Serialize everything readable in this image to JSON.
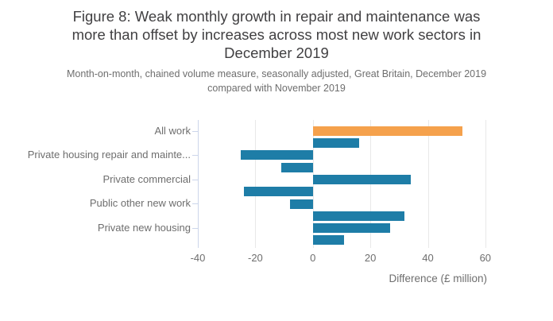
{
  "header": {
    "title_lines": [
      "Figure 8: Weak monthly growth in repair and maintenance was",
      "more than offset by increases across most new work sectors in",
      "December 2019"
    ],
    "subtitle_lines": [
      "Month-on-month, chained volume measure, seasonally adjusted, Great Britain, December 2019",
      "compared with November 2019"
    ]
  },
  "chart_data": {
    "type": "bar",
    "orientation": "horizontal",
    "title": "Figure 8: Weak monthly growth in repair and maintenance was more than offset by increases across most new work sectors in December 2019",
    "subtitle": "Month-on-month, chained volume measure, seasonally adjusted, Great Britain, December 2019 compared with November 2019",
    "xlabel": "Difference (£ million)",
    "categories": [
      "All work",
      "",
      "Private housing repair and mainte...",
      "",
      "Private commercial",
      "",
      "Public other new work",
      "",
      "Private new housing",
      ""
    ],
    "values": [
      52,
      16,
      -25,
      -11,
      34,
      -24,
      -8,
      32,
      27,
      11
    ],
    "highlight_index": 0,
    "x_ticks": [
      -40,
      -20,
      0,
      20,
      40,
      60
    ],
    "x_tick_labels": [
      "-40",
      "-20",
      "0",
      "20",
      "40",
      "60"
    ],
    "xlim": [
      -40,
      61.7
    ],
    "grid": true,
    "legend": "none",
    "colors": {
      "bar": "#1e7da7",
      "highlight": "#f5a14c",
      "axis_line": "#ccd6eb",
      "gridline": "#e8e8e8",
      "title_text": "#414042",
      "muted_text": "#6e6e6e",
      "background": "#ffffff"
    }
  }
}
